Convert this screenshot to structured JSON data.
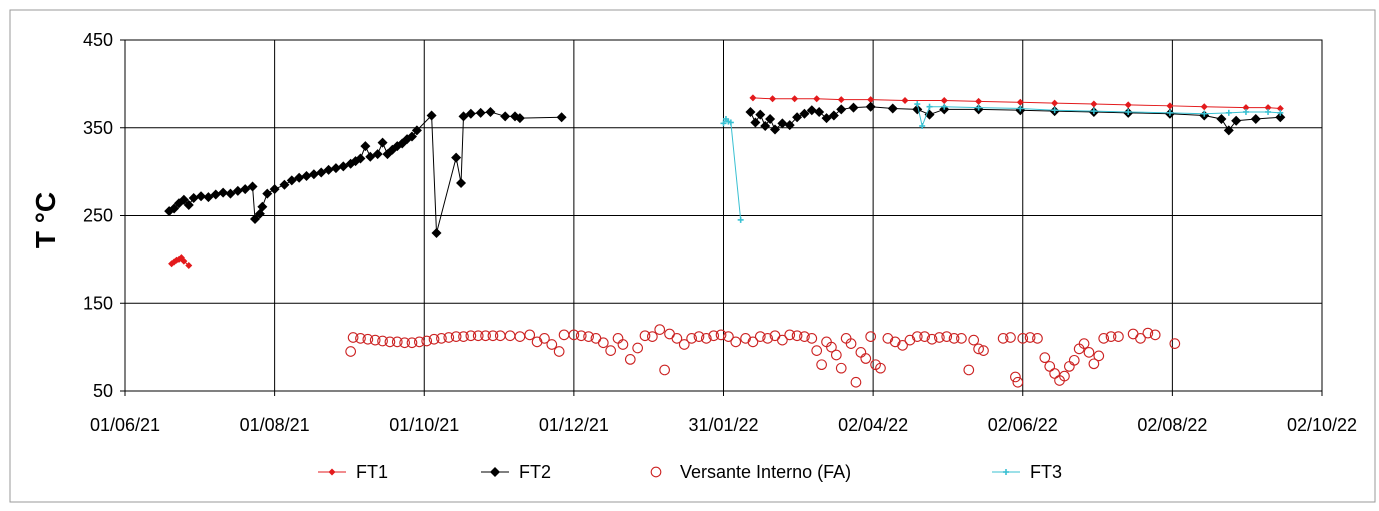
{
  "chart_data": {
    "type": "scatter",
    "ylabel": "T °C",
    "xlabel": "",
    "title": "",
    "x_ticks": [
      "01/06/21",
      "01/08/21",
      "01/10/21",
      "01/12/21",
      "31/01/22",
      "02/04/22",
      "02/06/22",
      "02/08/22",
      "02/10/22"
    ],
    "y_ticks": [
      "450",
      "350",
      "250",
      "150",
      "50"
    ],
    "ylim": [
      50,
      450
    ],
    "xlim": [
      "2021-06-01",
      "2022-10-02"
    ],
    "grid": true,
    "legend_position": "bottom",
    "series": [
      {
        "name": "FT1",
        "color": "#e31a1c",
        "marker": "small-diamond",
        "points": [
          [
            "2021-06-20",
            195
          ],
          [
            "2021-06-21",
            197
          ],
          [
            "2021-06-22",
            199
          ],
          [
            "2021-06-23",
            200
          ],
          [
            "2021-06-24",
            202
          ],
          [
            "2021-06-25",
            198
          ],
          [
            "2021-06-27",
            193
          ],
          [
            "2022-02-12",
            384
          ],
          [
            "2022-02-20",
            383
          ],
          [
            "2022-03-01",
            383
          ],
          [
            "2022-03-10",
            383
          ],
          [
            "2022-03-20",
            382
          ],
          [
            "2022-04-01",
            382
          ],
          [
            "2022-04-15",
            381
          ],
          [
            "2022-05-01",
            381
          ],
          [
            "2022-05-15",
            380
          ],
          [
            "2022-06-01",
            379
          ],
          [
            "2022-06-15",
            378
          ],
          [
            "2022-07-01",
            377
          ],
          [
            "2022-07-15",
            376
          ],
          [
            "2022-08-01",
            375
          ],
          [
            "2022-08-15",
            374
          ],
          [
            "2022-09-01",
            373
          ],
          [
            "2022-09-10",
            373
          ],
          [
            "2022-09-15",
            372
          ]
        ]
      },
      {
        "name": "FT2",
        "color": "#000000",
        "marker": "diamond",
        "points": [
          [
            "2021-06-19",
            255
          ],
          [
            "2021-06-21",
            258
          ],
          [
            "2021-06-23",
            264
          ],
          [
            "2021-06-25",
            268
          ],
          [
            "2021-06-27",
            262
          ],
          [
            "2021-06-29",
            270
          ],
          [
            "2021-07-02",
            272
          ],
          [
            "2021-07-05",
            271
          ],
          [
            "2021-07-08",
            274
          ],
          [
            "2021-07-11",
            276
          ],
          [
            "2021-07-14",
            275
          ],
          [
            "2021-07-17",
            278
          ],
          [
            "2021-07-20",
            280
          ],
          [
            "2021-07-23",
            283
          ],
          [
            "2021-07-24",
            246
          ],
          [
            "2021-07-26",
            252
          ],
          [
            "2021-07-27",
            260
          ],
          [
            "2021-07-29",
            275
          ],
          [
            "2021-08-01",
            280
          ],
          [
            "2021-08-05",
            285
          ],
          [
            "2021-08-08",
            290
          ],
          [
            "2021-08-11",
            293
          ],
          [
            "2021-08-14",
            295
          ],
          [
            "2021-08-17",
            297
          ],
          [
            "2021-08-20",
            299
          ],
          [
            "2021-08-23",
            302
          ],
          [
            "2021-08-26",
            304
          ],
          [
            "2021-08-29",
            306
          ],
          [
            "2021-09-01",
            309
          ],
          [
            "2021-09-03",
            312
          ],
          [
            "2021-09-05",
            315
          ],
          [
            "2021-09-07",
            329
          ],
          [
            "2021-09-09",
            317
          ],
          [
            "2021-09-12",
            320
          ],
          [
            "2021-09-14",
            333
          ],
          [
            "2021-09-16",
            320
          ],
          [
            "2021-09-18",
            325
          ],
          [
            "2021-09-20",
            329
          ],
          [
            "2021-09-22",
            332
          ],
          [
            "2021-09-24",
            337
          ],
          [
            "2021-09-26",
            340
          ],
          [
            "2021-09-28",
            347
          ],
          [
            "2021-10-04",
            364
          ],
          [
            "2021-10-06",
            230
          ],
          [
            "2021-10-14",
            316
          ],
          [
            "2021-10-16",
            287
          ],
          [
            "2021-10-17",
            363
          ],
          [
            "2021-10-20",
            366
          ],
          [
            "2021-10-24",
            367
          ],
          [
            "2021-10-28",
            368
          ],
          [
            "2021-11-03",
            363
          ],
          [
            "2021-11-07",
            363
          ],
          [
            "2021-11-09",
            361
          ],
          [
            "2021-11-26",
            362
          ],
          [
            "2022-02-11",
            368
          ],
          [
            "2022-02-13",
            356
          ],
          [
            "2022-02-15",
            365
          ],
          [
            "2022-02-17",
            352
          ],
          [
            "2022-02-19",
            360
          ],
          [
            "2022-02-21",
            348
          ],
          [
            "2022-02-24",
            355
          ],
          [
            "2022-02-27",
            353
          ],
          [
            "2022-03-02",
            362
          ],
          [
            "2022-03-05",
            366
          ],
          [
            "2022-03-08",
            370
          ],
          [
            "2022-03-11",
            368
          ],
          [
            "2022-03-14",
            361
          ],
          [
            "2022-03-17",
            364
          ],
          [
            "2022-03-20",
            371
          ],
          [
            "2022-03-25",
            373
          ],
          [
            "2022-04-01",
            374
          ],
          [
            "2022-04-10",
            372
          ],
          [
            "2022-04-20",
            371
          ],
          [
            "2022-04-25",
            365
          ],
          [
            "2022-05-01",
            371
          ],
          [
            "2022-05-15",
            371
          ],
          [
            "2022-06-01",
            370
          ],
          [
            "2022-06-15",
            369
          ],
          [
            "2022-07-01",
            368
          ],
          [
            "2022-07-15",
            367
          ],
          [
            "2022-08-01",
            366
          ],
          [
            "2022-08-15",
            364
          ],
          [
            "2022-08-22",
            360
          ],
          [
            "2022-08-25",
            347
          ],
          [
            "2022-08-28",
            358
          ],
          [
            "2022-09-05",
            360
          ],
          [
            "2022-09-15",
            362
          ]
        ]
      },
      {
        "name": "Versante Interno (FA)",
        "color": "#cc2222",
        "marker": "open-circle",
        "points": [
          [
            "2021-09-01",
            95
          ],
          [
            "2021-09-02",
            111
          ],
          [
            "2021-09-05",
            110
          ],
          [
            "2021-09-08",
            109
          ],
          [
            "2021-09-11",
            108
          ],
          [
            "2021-09-14",
            107
          ],
          [
            "2021-09-17",
            106
          ],
          [
            "2021-09-20",
            106
          ],
          [
            "2021-09-23",
            105
          ],
          [
            "2021-09-26",
            105
          ],
          [
            "2021-09-29",
            106
          ],
          [
            "2021-10-02",
            107
          ],
          [
            "2021-10-05",
            109
          ],
          [
            "2021-10-08",
            110
          ],
          [
            "2021-10-11",
            111
          ],
          [
            "2021-10-14",
            112
          ],
          [
            "2021-10-17",
            112
          ],
          [
            "2021-10-20",
            113
          ],
          [
            "2021-10-23",
            113
          ],
          [
            "2021-10-26",
            113
          ],
          [
            "2021-10-29",
            113
          ],
          [
            "2021-11-01",
            113
          ],
          [
            "2021-11-05",
            113
          ],
          [
            "2021-11-09",
            112
          ],
          [
            "2021-11-13",
            114
          ],
          [
            "2021-11-16",
            106
          ],
          [
            "2021-11-19",
            110
          ],
          [
            "2021-11-22",
            103
          ],
          [
            "2021-11-25",
            95
          ],
          [
            "2021-11-27",
            114
          ],
          [
            "2021-12-01",
            114
          ],
          [
            "2021-12-04",
            113
          ],
          [
            "2021-12-07",
            112
          ],
          [
            "2021-12-10",
            110
          ],
          [
            "2021-12-13",
            105
          ],
          [
            "2021-12-16",
            96
          ],
          [
            "2021-12-19",
            110
          ],
          [
            "2021-12-21",
            103
          ],
          [
            "2021-12-24",
            86
          ],
          [
            "2021-12-27",
            99
          ],
          [
            "2021-12-30",
            113
          ],
          [
            "2022-01-02",
            112
          ],
          [
            "2022-01-05",
            120
          ],
          [
            "2022-01-07",
            74
          ],
          [
            "2022-01-09",
            115
          ],
          [
            "2022-01-12",
            110
          ],
          [
            "2022-01-15",
            103
          ],
          [
            "2022-01-18",
            110
          ],
          [
            "2022-01-21",
            112
          ],
          [
            "2022-01-24",
            110
          ],
          [
            "2022-01-27",
            113
          ],
          [
            "2022-01-30",
            114
          ],
          [
            "2022-02-02",
            112
          ],
          [
            "2022-02-05",
            106
          ],
          [
            "2022-02-09",
            110
          ],
          [
            "2022-02-12",
            106
          ],
          [
            "2022-02-15",
            112
          ],
          [
            "2022-02-18",
            110
          ],
          [
            "2022-02-21",
            113
          ],
          [
            "2022-02-24",
            108
          ],
          [
            "2022-02-27",
            114
          ],
          [
            "2022-03-02",
            113
          ],
          [
            "2022-03-05",
            112
          ],
          [
            "2022-03-08",
            110
          ],
          [
            "2022-03-10",
            96
          ],
          [
            "2022-03-12",
            80
          ],
          [
            "2022-03-14",
            106
          ],
          [
            "2022-03-16",
            100
          ],
          [
            "2022-03-18",
            91
          ],
          [
            "2022-03-20",
            76
          ],
          [
            "2022-03-22",
            110
          ],
          [
            "2022-03-24",
            104
          ],
          [
            "2022-03-26",
            60
          ],
          [
            "2022-03-28",
            94
          ],
          [
            "2022-03-30",
            87
          ],
          [
            "2022-04-01",
            112
          ],
          [
            "2022-04-03",
            80
          ],
          [
            "2022-04-05",
            76
          ],
          [
            "2022-04-08",
            110
          ],
          [
            "2022-04-11",
            106
          ],
          [
            "2022-04-14",
            102
          ],
          [
            "2022-04-17",
            108
          ],
          [
            "2022-04-20",
            112
          ],
          [
            "2022-04-23",
            112
          ],
          [
            "2022-04-26",
            109
          ],
          [
            "2022-04-29",
            111
          ],
          [
            "2022-05-02",
            112
          ],
          [
            "2022-05-05",
            110
          ],
          [
            "2022-05-08",
            110
          ],
          [
            "2022-05-11",
            74
          ],
          [
            "2022-05-13",
            108
          ],
          [
            "2022-05-15",
            98
          ],
          [
            "2022-05-17",
            96
          ],
          [
            "2022-05-25",
            110
          ],
          [
            "2022-05-28",
            111
          ],
          [
            "2022-05-30",
            66
          ],
          [
            "2022-05-31",
            60
          ],
          [
            "2022-06-02",
            110
          ],
          [
            "2022-06-05",
            111
          ],
          [
            "2022-06-08",
            110
          ],
          [
            "2022-06-11",
            88
          ],
          [
            "2022-06-13",
            78
          ],
          [
            "2022-06-15",
            70
          ],
          [
            "2022-06-17",
            62
          ],
          [
            "2022-06-19",
            67
          ],
          [
            "2022-06-21",
            78
          ],
          [
            "2022-06-23",
            85
          ],
          [
            "2022-06-25",
            98
          ],
          [
            "2022-06-27",
            104
          ],
          [
            "2022-06-29",
            94
          ],
          [
            "2022-07-01",
            81
          ],
          [
            "2022-07-03",
            90
          ],
          [
            "2022-07-05",
            110
          ],
          [
            "2022-07-08",
            112
          ],
          [
            "2022-07-11",
            112
          ],
          [
            "2022-07-17",
            115
          ],
          [
            "2022-07-20",
            110
          ],
          [
            "2022-07-23",
            116
          ],
          [
            "2022-07-26",
            114
          ],
          [
            "2022-08-03",
            104
          ]
        ]
      },
      {
        "name": "FT3",
        "color": "#39c0d2",
        "marker": "small-star",
        "points": [
          [
            "2022-01-31",
            355
          ],
          [
            "2022-02-01",
            360
          ],
          [
            "2022-02-02",
            357
          ],
          [
            "2022-02-03",
            356
          ],
          [
            "2022-02-07",
            245
          ],
          [
            "2022-04-20",
            377
          ],
          [
            "2022-04-22",
            352
          ],
          [
            "2022-04-25",
            374
          ],
          [
            "2022-05-01",
            374
          ],
          [
            "2022-05-15",
            373
          ],
          [
            "2022-06-01",
            372
          ],
          [
            "2022-06-15",
            370
          ],
          [
            "2022-07-01",
            369
          ],
          [
            "2022-07-15",
            368
          ],
          [
            "2022-08-01",
            367
          ],
          [
            "2022-08-15",
            366
          ],
          [
            "2022-08-25",
            367
          ],
          [
            "2022-09-01",
            368
          ],
          [
            "2022-09-10",
            368
          ],
          [
            "2022-09-15",
            367
          ]
        ]
      }
    ]
  }
}
